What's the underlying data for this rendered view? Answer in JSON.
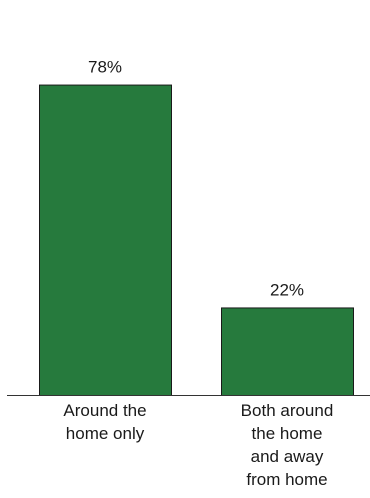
{
  "chart_data": {
    "type": "bar",
    "categories": [
      [
        "Around the",
        "home only"
      ],
      [
        "Both around",
        "the home",
        "and away",
        "from home"
      ]
    ],
    "values": [
      78,
      22
    ],
    "value_labels": [
      "78%",
      "22%"
    ],
    "unit": "%",
    "ylim": [
      0,
      100
    ],
    "bar_color": "#267a3d",
    "grid": false,
    "legend": "none",
    "axes_visible": "baseline only"
  }
}
